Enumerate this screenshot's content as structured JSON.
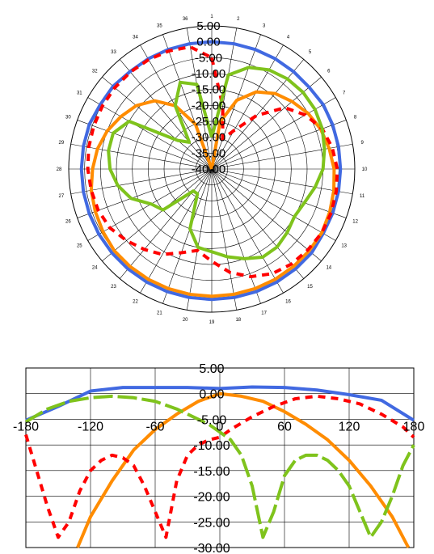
{
  "chart_data": [
    {
      "type": "polar",
      "title": "",
      "radial_ticks": [
        "5.00",
        "0.00",
        "-5.00",
        "-10.00",
        "-15.00",
        "-20.00",
        "-25.00",
        "-30.00",
        "-35.00",
        "-40.00"
      ],
      "radial_range": [
        -40,
        5
      ],
      "angular_labels": [
        "1",
        "2",
        "3",
        "4",
        "5",
        "6",
        "7",
        "8",
        "9",
        "10",
        "11",
        "12",
        "13",
        "14",
        "15",
        "16",
        "17",
        "18",
        "19",
        "20",
        "21",
        "22",
        "23",
        "24",
        "25",
        "26",
        "27",
        "28",
        "29",
        "30",
        "31",
        "32",
        "33",
        "34",
        "35",
        "36"
      ],
      "grid": true,
      "series": [
        {
          "color": "#4169e1",
          "style": "solid",
          "values": [
            0,
            0,
            0,
            0,
            0,
            0,
            0.5,
            0.5,
            0.5,
            0.5,
            0.5,
            0.5,
            0.5,
            1,
            1,
            1,
            1,
            1,
            1,
            1,
            1,
            1,
            1,
            1,
            1,
            1,
            1,
            1,
            1,
            1,
            0.5,
            0.5,
            0,
            0,
            0,
            0
          ]
        },
        {
          "color": "#ff8c00",
          "style": "solid",
          "values": [
            -40,
            -25,
            -17,
            -12,
            -9,
            -7,
            -5,
            -3.5,
            -2.5,
            -1.5,
            -1,
            -0.5,
            0,
            0,
            0,
            0,
            0,
            0,
            0,
            0,
            0,
            0,
            0,
            0,
            -0.5,
            -1,
            -1.5,
            -2.5,
            -3.5,
            -5,
            -7,
            -9,
            -12,
            -17,
            -25,
            -40
          ]
        },
        {
          "color": "#ff0000",
          "style": "dashed",
          "values": [
            -5,
            -20,
            -30,
            -26,
            -18,
            -10,
            -6,
            -3,
            -1.5,
            -0.5,
            -0.2,
            0,
            0,
            -0.5,
            -1,
            -2,
            -4,
            -7,
            -11,
            -14,
            -12,
            -9,
            -7,
            -5,
            -3,
            -2,
            -1.5,
            -1,
            -0.7,
            -0.5,
            -0.3,
            -0.2,
            -0.2,
            -0.3,
            -0.5,
            -1
          ]
        },
        {
          "color": "#7fc31c",
          "style": "solid",
          "values": [
            -30,
            -10,
            -6,
            -4,
            -3,
            -2.5,
            -2.5,
            -3,
            -4,
            -5,
            -7,
            -9,
            -10,
            -9,
            -8,
            -8,
            -10,
            -12,
            -14,
            -15,
            -20,
            -31,
            -31,
            -20,
            -18,
            -13,
            -10,
            -8,
            -7,
            -7,
            -10,
            -26,
            -29,
            -17,
            -11,
            -13
          ]
        }
      ]
    },
    {
      "type": "line",
      "title": "",
      "xlabel": "",
      "ylabel": "",
      "x_ticks": [
        "-180",
        "-120",
        "-60",
        "0",
        "60",
        "120",
        "180"
      ],
      "y_ticks": [
        "5.00",
        "0.00",
        "-5.00",
        "-10.00",
        "-15.00",
        "-20.00",
        "-25.00",
        "-30.00"
      ],
      "xlim": [
        -180,
        180
      ],
      "ylim": [
        -30,
        5
      ],
      "grid": true,
      "series": [
        {
          "color": "#4169e1",
          "style": "solid",
          "x": [
            -180,
            -150,
            -120,
            -90,
            -60,
            -30,
            0,
            30,
            60,
            90,
            120,
            150,
            180
          ],
          "y": [
            -5.2,
            -2.5,
            0.5,
            1.2,
            1.2,
            1.2,
            1,
            1.3,
            1.2,
            0.7,
            -0.2,
            -1.3,
            -5.2
          ]
        },
        {
          "color": "#ff8c00",
          "style": "solid",
          "x": [
            -132,
            -120,
            -100,
            -80,
            -60,
            -40,
            -20,
            0,
            20,
            40,
            60,
            80,
            100,
            120,
            140,
            160,
            175
          ],
          "y": [
            -30,
            -24,
            -17,
            -11,
            -7,
            -4,
            -1.5,
            0,
            -0.5,
            -1.5,
            -3.5,
            -6,
            -9,
            -13,
            -18,
            -24,
            -30
          ]
        },
        {
          "color": "#ff0000",
          "style": "dashed",
          "x": [
            -180,
            -170,
            -160,
            -150,
            -140,
            -130,
            -120,
            -110,
            -100,
            -90,
            -80,
            -70,
            -60,
            -50,
            -40,
            -30,
            -20,
            -10,
            0,
            10,
            30,
            50,
            70,
            90,
            110,
            130,
            150,
            170,
            180
          ],
          "y": [
            -8,
            -15,
            -22,
            -28,
            -25,
            -19,
            -15,
            -13,
            -12,
            -12.5,
            -14,
            -18,
            -23,
            -28,
            -17,
            -12,
            -10,
            -9,
            -8.5,
            -7,
            -4.5,
            -2.5,
            -1,
            -0.5,
            -1,
            -2,
            -4,
            -6.5,
            -8.5
          ]
        },
        {
          "color": "#7fc31c",
          "style": "solid",
          "x": [
            -180,
            -160,
            -140,
            -120,
            -100,
            -80,
            -60,
            -40,
            -20,
            -10,
            0,
            10,
            20,
            30,
            40,
            50,
            60,
            70,
            80,
            90,
            100,
            110,
            120,
            130,
            140,
            150,
            160,
            170,
            180
          ],
          "y": [
            -5.5,
            -3,
            -1.5,
            -0.8,
            -0.5,
            -0.8,
            -1.5,
            -3,
            -5,
            -6,
            -7.5,
            -9,
            -12,
            -18,
            -28,
            -23,
            -16,
            -13,
            -12,
            -12,
            -13,
            -15,
            -18,
            -23,
            -28,
            -25,
            -20,
            -14,
            -10
          ]
        }
      ]
    }
  ]
}
